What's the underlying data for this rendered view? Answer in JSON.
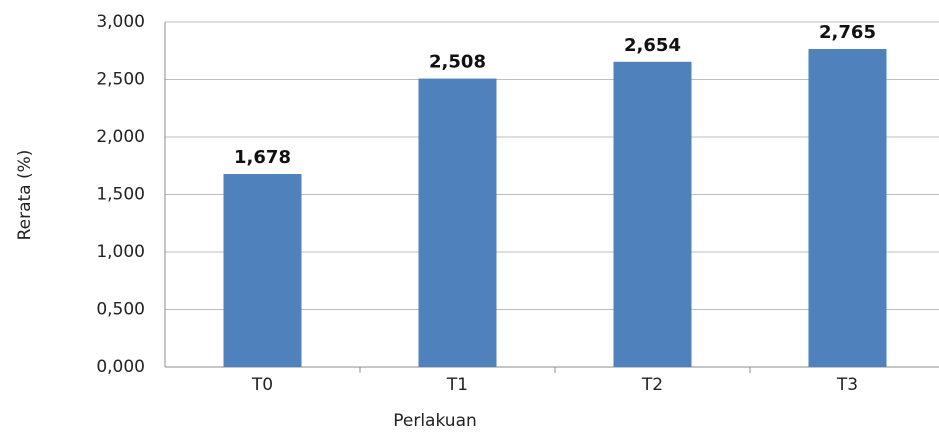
{
  "chart_data": {
    "type": "bar",
    "x_label": "Perlakuan",
    "y_label": "Rerata (%)",
    "categories": [
      "T0",
      "T1",
      "T2",
      "T3"
    ],
    "values": [
      1.678,
      2.508,
      2.654,
      2.765
    ],
    "value_labels": [
      "1,678",
      "2,508",
      "2,654",
      "2,765"
    ],
    "color": "#4f81bd",
    "ylim": [
      0,
      3
    ],
    "yticks": [
      {
        "value": 0,
        "label": "0,000"
      },
      {
        "value": 0.5,
        "label": "0,500"
      },
      {
        "value": 1,
        "label": "1,000"
      },
      {
        "value": 1.5,
        "label": "1,500"
      },
      {
        "value": 2,
        "label": "2,000"
      },
      {
        "value": 2.5,
        "label": "2,500"
      },
      {
        "value": 3,
        "label": "3,000"
      }
    ],
    "grid": true
  }
}
